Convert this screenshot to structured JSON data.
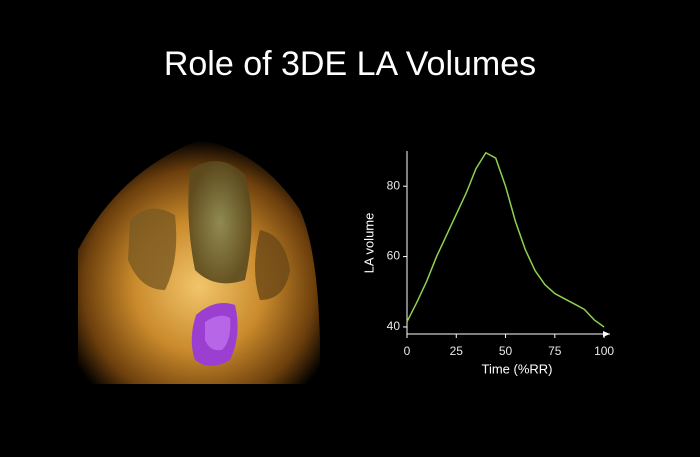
{
  "chart_data": {
    "type": "line",
    "title": "Role of 3DE LA Volumes",
    "x_label": "Time (%RR)",
    "y_label": "LA volume",
    "x": [
      0,
      5,
      10,
      15,
      20,
      25,
      30,
      35,
      40,
      45,
      50,
      55,
      60,
      65,
      70,
      75,
      80,
      85,
      90,
      95,
      100
    ],
    "series": [
      {
        "color": "#8fd14f",
        "values": [
          41.5,
          47,
          53,
          60,
          66,
          72,
          78,
          85,
          89.5,
          88,
          80,
          70,
          62,
          56,
          52,
          49.5,
          48,
          46.5,
          45,
          42,
          40
        ]
      }
    ],
    "xlim": [
      0,
      103
    ],
    "ylim": [
      38,
      90
    ],
    "xticks": [
      0,
      25,
      50,
      75,
      100
    ],
    "yticks": [
      40,
      60,
      80
    ],
    "grid": false
  }
}
